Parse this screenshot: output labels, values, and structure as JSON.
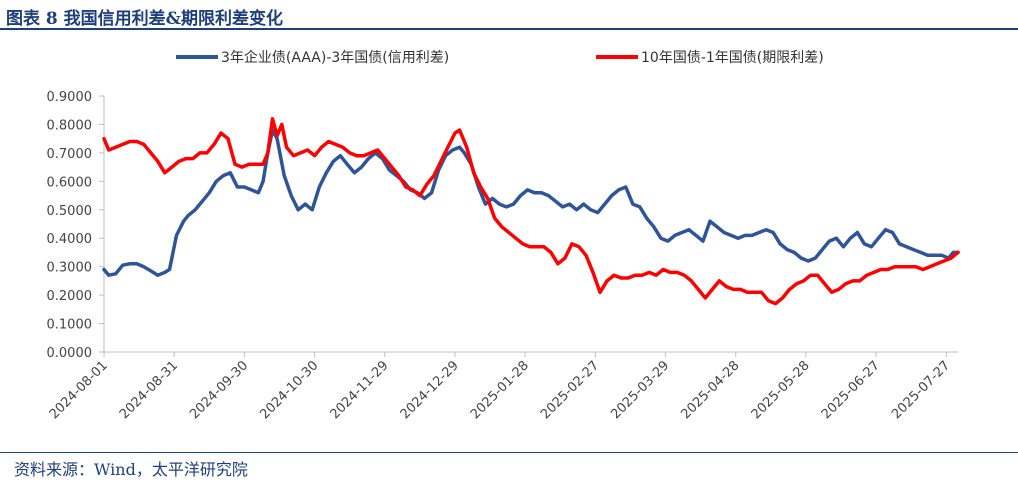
{
  "header": {
    "title": "图表 8 我国信用利差&期限利差变化"
  },
  "footer": {
    "source": "资料来源：Wind，太平洋研究院"
  },
  "chart_data": {
    "type": "line",
    "title": "",
    "xlabel": "",
    "ylabel": "",
    "ylim": [
      0,
      0.9
    ],
    "y_ticks": [
      "0.0000",
      "0.1000",
      "0.2000",
      "0.3000",
      "0.4000",
      "0.5000",
      "0.6000",
      "0.7000",
      "0.8000",
      "0.9000"
    ],
    "x_range": [
      "2024-08-01",
      "2025-08-01"
    ],
    "x_ticks": [
      "2024-08-01",
      "2024-08-31",
      "2024-09-30",
      "2024-10-30",
      "2024-11-29",
      "2024-12-29",
      "2025-01-28",
      "2025-02-27",
      "2025-03-29",
      "2025-04-28",
      "2025-05-28",
      "2025-06-27",
      "2025-07-27"
    ],
    "grid": false,
    "legend_position": "top",
    "series": [
      {
        "name": "3年企业债(AAA)-3年国债(信用利差)",
        "color": "#2f5597",
        "points": [
          [
            "2024-08-01",
            0.29
          ],
          [
            "2024-08-03",
            0.27
          ],
          [
            "2024-08-06",
            0.275
          ],
          [
            "2024-08-09",
            0.305
          ],
          [
            "2024-08-12",
            0.31
          ],
          [
            "2024-08-15",
            0.31
          ],
          [
            "2024-08-18",
            0.3
          ],
          [
            "2024-08-21",
            0.285
          ],
          [
            "2024-08-24",
            0.27
          ],
          [
            "2024-08-27",
            0.28
          ],
          [
            "2024-08-29",
            0.29
          ],
          [
            "2024-09-01",
            0.41
          ],
          [
            "2024-09-04",
            0.46
          ],
          [
            "2024-09-06",
            0.48
          ],
          [
            "2024-09-09",
            0.5
          ],
          [
            "2024-09-12",
            0.53
          ],
          [
            "2024-09-15",
            0.56
          ],
          [
            "2024-09-18",
            0.6
          ],
          [
            "2024-09-21",
            0.62
          ],
          [
            "2024-09-24",
            0.63
          ],
          [
            "2024-09-27",
            0.58
          ],
          [
            "2024-09-30",
            0.58
          ],
          [
            "2024-10-03",
            0.57
          ],
          [
            "2024-10-06",
            0.56
          ],
          [
            "2024-10-08",
            0.6
          ],
          [
            "2024-10-10",
            0.7
          ],
          [
            "2024-10-12",
            0.78
          ],
          [
            "2024-10-14",
            0.75
          ],
          [
            "2024-10-17",
            0.62
          ],
          [
            "2024-10-20",
            0.55
          ],
          [
            "2024-10-23",
            0.5
          ],
          [
            "2024-10-26",
            0.52
          ],
          [
            "2024-10-29",
            0.5
          ],
          [
            "2024-11-01",
            0.58
          ],
          [
            "2024-11-04",
            0.63
          ],
          [
            "2024-11-07",
            0.67
          ],
          [
            "2024-11-10",
            0.69
          ],
          [
            "2024-11-13",
            0.66
          ],
          [
            "2024-11-16",
            0.63
          ],
          [
            "2024-11-19",
            0.65
          ],
          [
            "2024-11-22",
            0.68
          ],
          [
            "2024-11-25",
            0.7
          ],
          [
            "2024-11-28",
            0.68
          ],
          [
            "2024-12-01",
            0.64
          ],
          [
            "2024-12-04",
            0.62
          ],
          [
            "2024-12-07",
            0.6
          ],
          [
            "2024-12-10",
            0.57
          ],
          [
            "2024-12-13",
            0.56
          ],
          [
            "2024-12-16",
            0.54
          ],
          [
            "2024-12-19",
            0.56
          ],
          [
            "2024-12-22",
            0.64
          ],
          [
            "2024-12-25",
            0.69
          ],
          [
            "2024-12-28",
            0.71
          ],
          [
            "2024-12-31",
            0.72
          ],
          [
            "2025-01-02",
            0.7
          ],
          [
            "2025-01-05",
            0.66
          ],
          [
            "2025-01-08",
            0.58
          ],
          [
            "2025-01-11",
            0.52
          ],
          [
            "2025-01-14",
            0.54
          ],
          [
            "2025-01-17",
            0.52
          ],
          [
            "2025-01-20",
            0.51
          ],
          [
            "2025-01-23",
            0.52
          ],
          [
            "2025-01-26",
            0.55
          ],
          [
            "2025-01-29",
            0.57
          ],
          [
            "2025-02-01",
            0.56
          ],
          [
            "2025-02-04",
            0.56
          ],
          [
            "2025-02-07",
            0.55
          ],
          [
            "2025-02-10",
            0.53
          ],
          [
            "2025-02-13",
            0.51
          ],
          [
            "2025-02-16",
            0.52
          ],
          [
            "2025-02-19",
            0.5
          ],
          [
            "2025-02-22",
            0.52
          ],
          [
            "2025-02-25",
            0.5
          ],
          [
            "2025-02-28",
            0.49
          ],
          [
            "2025-03-03",
            0.52
          ],
          [
            "2025-03-06",
            0.55
          ],
          [
            "2025-03-09",
            0.57
          ],
          [
            "2025-03-12",
            0.58
          ],
          [
            "2025-03-15",
            0.52
          ],
          [
            "2025-03-18",
            0.51
          ],
          [
            "2025-03-21",
            0.47
          ],
          [
            "2025-03-24",
            0.44
          ],
          [
            "2025-03-27",
            0.4
          ],
          [
            "2025-03-30",
            0.39
          ],
          [
            "2025-04-02",
            0.41
          ],
          [
            "2025-04-05",
            0.42
          ],
          [
            "2025-04-08",
            0.43
          ],
          [
            "2025-04-11",
            0.41
          ],
          [
            "2025-04-14",
            0.39
          ],
          [
            "2025-04-17",
            0.46
          ],
          [
            "2025-04-20",
            0.44
          ],
          [
            "2025-04-23",
            0.42
          ],
          [
            "2025-04-26",
            0.41
          ],
          [
            "2025-04-29",
            0.4
          ],
          [
            "2025-05-02",
            0.41
          ],
          [
            "2025-05-05",
            0.41
          ],
          [
            "2025-05-08",
            0.42
          ],
          [
            "2025-05-11",
            0.43
          ],
          [
            "2025-05-14",
            0.42
          ],
          [
            "2025-05-17",
            0.38
          ],
          [
            "2025-05-20",
            0.36
          ],
          [
            "2025-05-23",
            0.35
          ],
          [
            "2025-05-26",
            0.33
          ],
          [
            "2025-05-29",
            0.32
          ],
          [
            "2025-06-01",
            0.33
          ],
          [
            "2025-06-04",
            0.36
          ],
          [
            "2025-06-07",
            0.39
          ],
          [
            "2025-06-10",
            0.4
          ],
          [
            "2025-06-13",
            0.37
          ],
          [
            "2025-06-16",
            0.4
          ],
          [
            "2025-06-19",
            0.42
          ],
          [
            "2025-06-22",
            0.38
          ],
          [
            "2025-06-25",
            0.37
          ],
          [
            "2025-06-28",
            0.4
          ],
          [
            "2025-07-01",
            0.43
          ],
          [
            "2025-07-04",
            0.42
          ],
          [
            "2025-07-07",
            0.38
          ],
          [
            "2025-07-10",
            0.37
          ],
          [
            "2025-07-13",
            0.36
          ],
          [
            "2025-07-16",
            0.35
          ],
          [
            "2025-07-19",
            0.34
          ],
          [
            "2025-07-22",
            0.34
          ],
          [
            "2025-07-25",
            0.34
          ],
          [
            "2025-07-28",
            0.33
          ],
          [
            "2025-07-30",
            0.35
          ],
          [
            "2025-08-01",
            0.35
          ]
        ]
      },
      {
        "name": "10年国债-1年国债(期限利差)",
        "color": "#ff0000",
        "points": [
          [
            "2024-08-01",
            0.75
          ],
          [
            "2024-08-03",
            0.71
          ],
          [
            "2024-08-06",
            0.72
          ],
          [
            "2024-08-09",
            0.73
          ],
          [
            "2024-08-12",
            0.74
          ],
          [
            "2024-08-15",
            0.74
          ],
          [
            "2024-08-18",
            0.73
          ],
          [
            "2024-08-21",
            0.7
          ],
          [
            "2024-08-24",
            0.67
          ],
          [
            "2024-08-27",
            0.63
          ],
          [
            "2024-08-30",
            0.65
          ],
          [
            "2024-09-02",
            0.67
          ],
          [
            "2024-09-05",
            0.68
          ],
          [
            "2024-09-08",
            0.68
          ],
          [
            "2024-09-11",
            0.7
          ],
          [
            "2024-09-14",
            0.7
          ],
          [
            "2024-09-17",
            0.73
          ],
          [
            "2024-09-20",
            0.77
          ],
          [
            "2024-09-23",
            0.75
          ],
          [
            "2024-09-26",
            0.66
          ],
          [
            "2024-09-29",
            0.65
          ],
          [
            "2024-10-02",
            0.66
          ],
          [
            "2024-10-05",
            0.66
          ],
          [
            "2024-10-08",
            0.66
          ],
          [
            "2024-10-10",
            0.7
          ],
          [
            "2024-10-12",
            0.82
          ],
          [
            "2024-10-14",
            0.76
          ],
          [
            "2024-10-16",
            0.8
          ],
          [
            "2024-10-18",
            0.72
          ],
          [
            "2024-10-21",
            0.69
          ],
          [
            "2024-10-24",
            0.7
          ],
          [
            "2024-10-27",
            0.71
          ],
          [
            "2024-10-30",
            0.69
          ],
          [
            "2024-11-02",
            0.72
          ],
          [
            "2024-11-05",
            0.74
          ],
          [
            "2024-11-08",
            0.73
          ],
          [
            "2024-11-11",
            0.72
          ],
          [
            "2024-11-14",
            0.7
          ],
          [
            "2024-11-17",
            0.69
          ],
          [
            "2024-11-20",
            0.69
          ],
          [
            "2024-11-23",
            0.7
          ],
          [
            "2024-11-26",
            0.71
          ],
          [
            "2024-11-29",
            0.68
          ],
          [
            "2024-12-02",
            0.65
          ],
          [
            "2024-12-05",
            0.62
          ],
          [
            "2024-12-08",
            0.58
          ],
          [
            "2024-12-11",
            0.57
          ],
          [
            "2024-12-14",
            0.55
          ],
          [
            "2024-12-17",
            0.59
          ],
          [
            "2024-12-20",
            0.62
          ],
          [
            "2024-12-23",
            0.67
          ],
          [
            "2024-12-26",
            0.72
          ],
          [
            "2024-12-29",
            0.77
          ],
          [
            "2024-12-31",
            0.78
          ],
          [
            "2025-01-03",
            0.72
          ],
          [
            "2025-01-06",
            0.63
          ],
          [
            "2025-01-09",
            0.58
          ],
          [
            "2025-01-12",
            0.54
          ],
          [
            "2025-01-15",
            0.47
          ],
          [
            "2025-01-18",
            0.44
          ],
          [
            "2025-01-21",
            0.42
          ],
          [
            "2025-01-24",
            0.4
          ],
          [
            "2025-01-27",
            0.38
          ],
          [
            "2025-01-30",
            0.37
          ],
          [
            "2025-02-02",
            0.37
          ],
          [
            "2025-02-05",
            0.37
          ],
          [
            "2025-02-08",
            0.35
          ],
          [
            "2025-02-11",
            0.31
          ],
          [
            "2025-02-14",
            0.33
          ],
          [
            "2025-02-17",
            0.38
          ],
          [
            "2025-02-20",
            0.37
          ],
          [
            "2025-02-23",
            0.34
          ],
          [
            "2025-02-26",
            0.28
          ],
          [
            "2025-03-01",
            0.21
          ],
          [
            "2025-03-04",
            0.25
          ],
          [
            "2025-03-07",
            0.27
          ],
          [
            "2025-03-10",
            0.26
          ],
          [
            "2025-03-13",
            0.26
          ],
          [
            "2025-03-16",
            0.27
          ],
          [
            "2025-03-19",
            0.27
          ],
          [
            "2025-03-22",
            0.28
          ],
          [
            "2025-03-25",
            0.27
          ],
          [
            "2025-03-28",
            0.29
          ],
          [
            "2025-03-31",
            0.28
          ],
          [
            "2025-04-03",
            0.28
          ],
          [
            "2025-04-06",
            0.27
          ],
          [
            "2025-04-09",
            0.25
          ],
          [
            "2025-04-12",
            0.22
          ],
          [
            "2025-04-15",
            0.19
          ],
          [
            "2025-04-18",
            0.22
          ],
          [
            "2025-04-21",
            0.25
          ],
          [
            "2025-04-24",
            0.23
          ],
          [
            "2025-04-27",
            0.22
          ],
          [
            "2025-04-30",
            0.22
          ],
          [
            "2025-05-03",
            0.21
          ],
          [
            "2025-05-06",
            0.21
          ],
          [
            "2025-05-09",
            0.21
          ],
          [
            "2025-05-12",
            0.18
          ],
          [
            "2025-05-15",
            0.17
          ],
          [
            "2025-05-18",
            0.19
          ],
          [
            "2025-05-21",
            0.22
          ],
          [
            "2025-05-24",
            0.24
          ],
          [
            "2025-05-27",
            0.25
          ],
          [
            "2025-05-30",
            0.27
          ],
          [
            "2025-06-02",
            0.27
          ],
          [
            "2025-06-05",
            0.24
          ],
          [
            "2025-06-08",
            0.21
          ],
          [
            "2025-06-11",
            0.22
          ],
          [
            "2025-06-14",
            0.24
          ],
          [
            "2025-06-17",
            0.25
          ],
          [
            "2025-06-20",
            0.25
          ],
          [
            "2025-06-23",
            0.27
          ],
          [
            "2025-06-26",
            0.28
          ],
          [
            "2025-06-29",
            0.29
          ],
          [
            "2025-07-02",
            0.29
          ],
          [
            "2025-07-05",
            0.3
          ],
          [
            "2025-07-08",
            0.3
          ],
          [
            "2025-07-11",
            0.3
          ],
          [
            "2025-07-14",
            0.3
          ],
          [
            "2025-07-17",
            0.29
          ],
          [
            "2025-07-20",
            0.3
          ],
          [
            "2025-07-23",
            0.31
          ],
          [
            "2025-07-26",
            0.32
          ],
          [
            "2025-07-29",
            0.33
          ],
          [
            "2025-08-01",
            0.35
          ]
        ]
      }
    ]
  }
}
